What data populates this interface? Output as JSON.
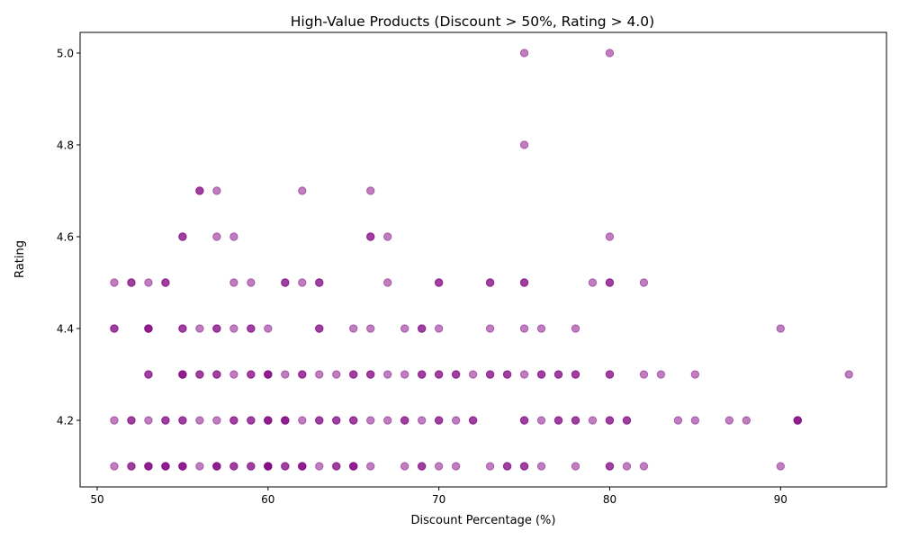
{
  "chart_data": {
    "type": "scatter",
    "title": "High-Value Products (Discount > 50%, Rating > 4.0)",
    "xlabel": "Discount Percentage (%)",
    "ylabel": "Rating",
    "xlim": [
      49,
      96.2
    ],
    "ylim": [
      4.055,
      5.045
    ],
    "xticks": [
      50,
      60,
      70,
      80,
      90
    ],
    "yticks": [
      4.2,
      4.4,
      4.6,
      4.8,
      5.0
    ],
    "ytick_labels": [
      "4.2",
      "4.4",
      "4.6",
      "4.8",
      "5.0"
    ],
    "grid": false,
    "marker_color": "#800080",
    "marker_alpha": 0.5,
    "points": [
      [
        51,
        4.5
      ],
      [
        51,
        4.4
      ],
      [
        51,
        4.4
      ],
      [
        51,
        4.2
      ],
      [
        51,
        4.1
      ],
      [
        52,
        4.5
      ],
      [
        52,
        4.5
      ],
      [
        52,
        4.2
      ],
      [
        52,
        4.2
      ],
      [
        52,
        4.1
      ],
      [
        52,
        4.1
      ],
      [
        53,
        4.5
      ],
      [
        53,
        4.4
      ],
      [
        53,
        4.4
      ],
      [
        53,
        4.4
      ],
      [
        53,
        4.3
      ],
      [
        53,
        4.3
      ],
      [
        53,
        4.2
      ],
      [
        53,
        4.1
      ],
      [
        53,
        4.1
      ],
      [
        53,
        4.1
      ],
      [
        54,
        4.5
      ],
      [
        54,
        4.5
      ],
      [
        54,
        4.2
      ],
      [
        54,
        4.2
      ],
      [
        54,
        4.1
      ],
      [
        54,
        4.1
      ],
      [
        54,
        4.1
      ],
      [
        55,
        4.6
      ],
      [
        55,
        4.6
      ],
      [
        55,
        4.4
      ],
      [
        55,
        4.4
      ],
      [
        55,
        4.3
      ],
      [
        55,
        4.3
      ],
      [
        55,
        4.3
      ],
      [
        55,
        4.2
      ],
      [
        55,
        4.2
      ],
      [
        55,
        4.1
      ],
      [
        55,
        4.1
      ],
      [
        55,
        4.1
      ],
      [
        56,
        4.7
      ],
      [
        56,
        4.7
      ],
      [
        56,
        4.4
      ],
      [
        56,
        4.3
      ],
      [
        56,
        4.3
      ],
      [
        56,
        4.2
      ],
      [
        56,
        4.1
      ],
      [
        57,
        4.7
      ],
      [
        57,
        4.6
      ],
      [
        57,
        4.4
      ],
      [
        57,
        4.4
      ],
      [
        57,
        4.3
      ],
      [
        57,
        4.3
      ],
      [
        57,
        4.2
      ],
      [
        57,
        4.1
      ],
      [
        57,
        4.1
      ],
      [
        57,
        4.1
      ],
      [
        58,
        4.6
      ],
      [
        58,
        4.5
      ],
      [
        58,
        4.4
      ],
      [
        58,
        4.3
      ],
      [
        58,
        4.2
      ],
      [
        58,
        4.2
      ],
      [
        58,
        4.1
      ],
      [
        58,
        4.1
      ],
      [
        59,
        4.5
      ],
      [
        59,
        4.4
      ],
      [
        59,
        4.4
      ],
      [
        59,
        4.3
      ],
      [
        59,
        4.3
      ],
      [
        59,
        4.2
      ],
      [
        59,
        4.2
      ],
      [
        59,
        4.1
      ],
      [
        59,
        4.1
      ],
      [
        60,
        4.4
      ],
      [
        60,
        4.3
      ],
      [
        60,
        4.3
      ],
      [
        60,
        4.3
      ],
      [
        60,
        4.2
      ],
      [
        60,
        4.2
      ],
      [
        60,
        4.2
      ],
      [
        60,
        4.1
      ],
      [
        60,
        4.1
      ],
      [
        60,
        4.1
      ],
      [
        60,
        4.1
      ],
      [
        61,
        4.5
      ],
      [
        61,
        4.5
      ],
      [
        61,
        4.3
      ],
      [
        61,
        4.2
      ],
      [
        61,
        4.2
      ],
      [
        61,
        4.2
      ],
      [
        61,
        4.1
      ],
      [
        61,
        4.1
      ],
      [
        62,
        4.7
      ],
      [
        62,
        4.5
      ],
      [
        62,
        4.3
      ],
      [
        62,
        4.3
      ],
      [
        62,
        4.2
      ],
      [
        62,
        4.1
      ],
      [
        62,
        4.1
      ],
      [
        62,
        4.1
      ],
      [
        63,
        4.5
      ],
      [
        63,
        4.5
      ],
      [
        63,
        4.4
      ],
      [
        63,
        4.4
      ],
      [
        63,
        4.3
      ],
      [
        63,
        4.2
      ],
      [
        63,
        4.2
      ],
      [
        63,
        4.1
      ],
      [
        64,
        4.3
      ],
      [
        64,
        4.2
      ],
      [
        64,
        4.2
      ],
      [
        64,
        4.1
      ],
      [
        64,
        4.1
      ],
      [
        65,
        4.4
      ],
      [
        65,
        4.3
      ],
      [
        65,
        4.3
      ],
      [
        65,
        4.2
      ],
      [
        65,
        4.2
      ],
      [
        65,
        4.1
      ],
      [
        65,
        4.1
      ],
      [
        65,
        4.1
      ],
      [
        66,
        4.7
      ],
      [
        66,
        4.6
      ],
      [
        66,
        4.6
      ],
      [
        66,
        4.4
      ],
      [
        66,
        4.3
      ],
      [
        66,
        4.3
      ],
      [
        66,
        4.2
      ],
      [
        66,
        4.1
      ],
      [
        67,
        4.6
      ],
      [
        67,
        4.5
      ],
      [
        67,
        4.3
      ],
      [
        67,
        4.2
      ],
      [
        68,
        4.4
      ],
      [
        68,
        4.3
      ],
      [
        68,
        4.2
      ],
      [
        68,
        4.2
      ],
      [
        68,
        4.1
      ],
      [
        69,
        4.4
      ],
      [
        69,
        4.4
      ],
      [
        69,
        4.3
      ],
      [
        69,
        4.3
      ],
      [
        69,
        4.2
      ],
      [
        69,
        4.1
      ],
      [
        69,
        4.1
      ],
      [
        70,
        4.5
      ],
      [
        70,
        4.5
      ],
      [
        70,
        4.4
      ],
      [
        70,
        4.3
      ],
      [
        70,
        4.3
      ],
      [
        70,
        4.2
      ],
      [
        70,
        4.2
      ],
      [
        70,
        4.1
      ],
      [
        71,
        4.3
      ],
      [
        71,
        4.3
      ],
      [
        71,
        4.2
      ],
      [
        71,
        4.1
      ],
      [
        72,
        4.3
      ],
      [
        72,
        4.2
      ],
      [
        72,
        4.2
      ],
      [
        73,
        4.5
      ],
      [
        73,
        4.5
      ],
      [
        73,
        4.4
      ],
      [
        73,
        4.3
      ],
      [
        73,
        4.3
      ],
      [
        73,
        4.1
      ],
      [
        74,
        4.3
      ],
      [
        74,
        4.3
      ],
      [
        74,
        4.1
      ],
      [
        74,
        4.1
      ],
      [
        75,
        5.0
      ],
      [
        75,
        4.8
      ],
      [
        75,
        4.5
      ],
      [
        75,
        4.5
      ],
      [
        75,
        4.4
      ],
      [
        75,
        4.3
      ],
      [
        75,
        4.2
      ],
      [
        75,
        4.2
      ],
      [
        75,
        4.1
      ],
      [
        75,
        4.1
      ],
      [
        76,
        4.4
      ],
      [
        76,
        4.3
      ],
      [
        76,
        4.3
      ],
      [
        76,
        4.2
      ],
      [
        76,
        4.1
      ],
      [
        77,
        4.3
      ],
      [
        77,
        4.3
      ],
      [
        77,
        4.2
      ],
      [
        77,
        4.2
      ],
      [
        78,
        4.4
      ],
      [
        78,
        4.3
      ],
      [
        78,
        4.3
      ],
      [
        78,
        4.2
      ],
      [
        78,
        4.2
      ],
      [
        78,
        4.1
      ],
      [
        79,
        4.5
      ],
      [
        79,
        4.2
      ],
      [
        80,
        5.0
      ],
      [
        80,
        4.6
      ],
      [
        80,
        4.5
      ],
      [
        80,
        4.5
      ],
      [
        80,
        4.3
      ],
      [
        80,
        4.3
      ],
      [
        80,
        4.2
      ],
      [
        80,
        4.2
      ],
      [
        80,
        4.1
      ],
      [
        80,
        4.1
      ],
      [
        81,
        4.2
      ],
      [
        81,
        4.2
      ],
      [
        81,
        4.1
      ],
      [
        82,
        4.5
      ],
      [
        82,
        4.3
      ],
      [
        82,
        4.1
      ],
      [
        83,
        4.3
      ],
      [
        84,
        4.2
      ],
      [
        85,
        4.3
      ],
      [
        85,
        4.2
      ],
      [
        87,
        4.2
      ],
      [
        88,
        4.2
      ],
      [
        90,
        4.4
      ],
      [
        90,
        4.1
      ],
      [
        91,
        4.2
      ],
      [
        91,
        4.2
      ],
      [
        91,
        4.2
      ],
      [
        94,
        4.3
      ]
    ]
  }
}
